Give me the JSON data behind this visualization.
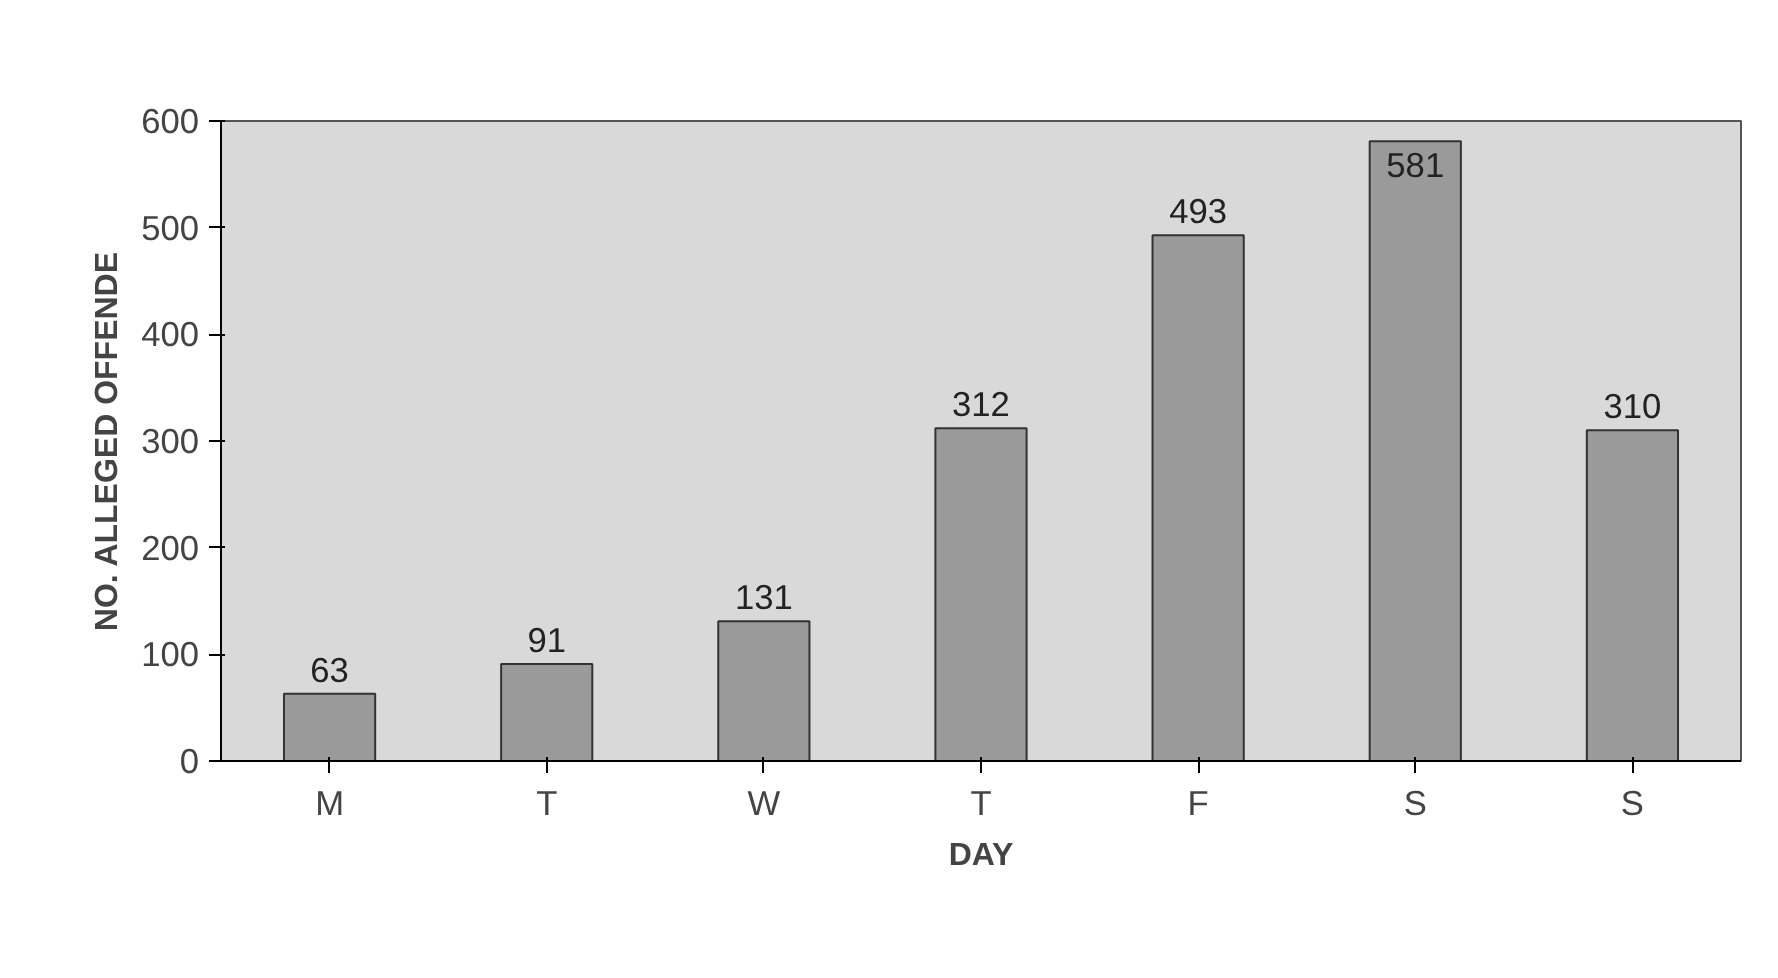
{
  "chart_data": {
    "type": "bar",
    "xlabel": "DAY",
    "ylabel": "NO. ALLEGED OFFENDE",
    "categories": [
      "M",
      "T",
      "W",
      "T",
      "F",
      "S",
      "S"
    ],
    "values": [
      63,
      91,
      131,
      312,
      493,
      581,
      310
    ],
    "color": "#9a9a9a",
    "ylim": [
      0,
      600
    ],
    "yticks": [
      0,
      100,
      200,
      300,
      400,
      500,
      600
    ],
    "data_labels": true,
    "grid": false,
    "legend": false
  }
}
